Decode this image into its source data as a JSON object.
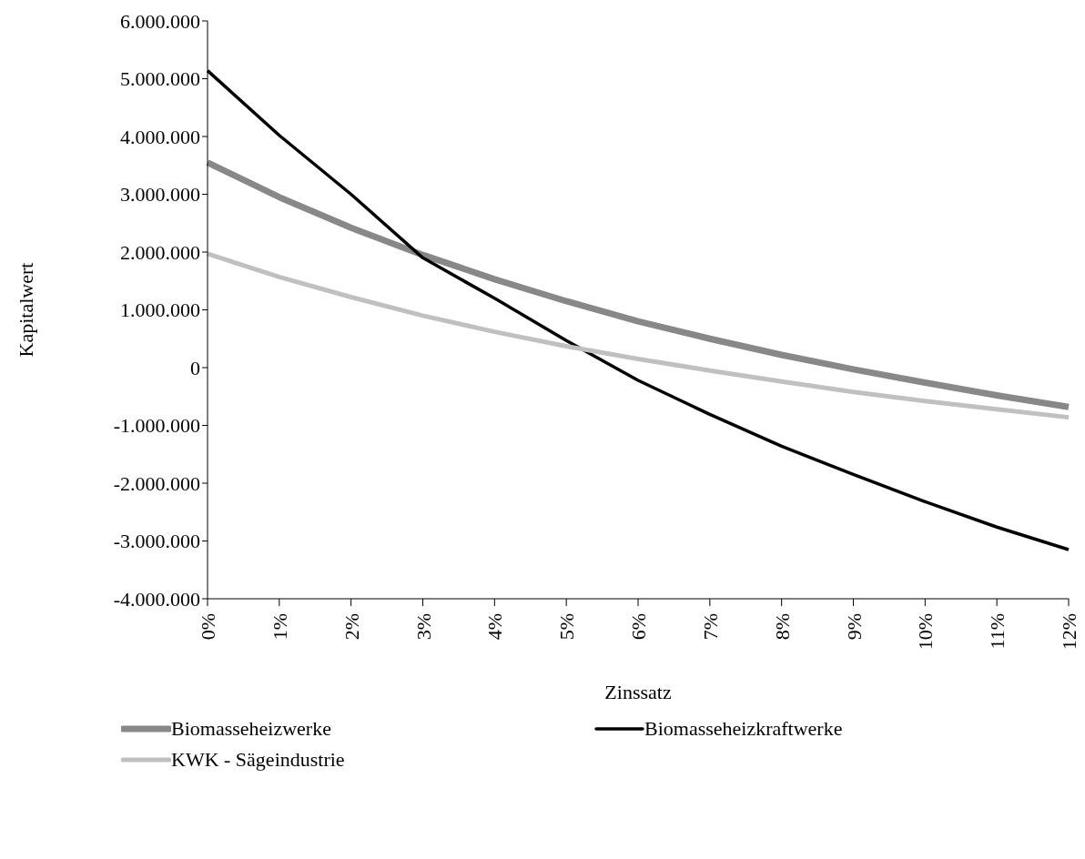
{
  "chart_data": {
    "type": "line",
    "xlabel": "Zinssatz",
    "ylabel": "Kapitalwert",
    "categories": [
      "0%",
      "1%",
      "2%",
      "3%",
      "4%",
      "5%",
      "6%",
      "7%",
      "8%",
      "9%",
      "10%",
      "11%",
      "12%"
    ],
    "series": [
      {
        "name": "Biomasseheizwerke",
        "color": "#888888",
        "values": [
          3550000,
          2950000,
          2420000,
          1950000,
          1530000,
          1150000,
          800000,
          500000,
          220000,
          -30000,
          -260000,
          -480000,
          -680000
        ]
      },
      {
        "name": "Biomasseheizkraftwerke",
        "color": "#000000",
        "values": [
          5140000,
          4020000,
          3000000,
          1900000,
          1200000,
          470000,
          -220000,
          -810000,
          -1360000,
          -1850000,
          -2320000,
          -2760000,
          -3150000
        ]
      },
      {
        "name": "KWK - Sägeindustrie",
        "color": "#c0c0c0",
        "values": [
          1970000,
          1570000,
          1220000,
          900000,
          620000,
          370000,
          150000,
          -50000,
          -240000,
          -420000,
          -580000,
          -720000,
          -860000
        ]
      }
    ],
    "ylim": [
      -4000000,
      6000000
    ],
    "yticks": [
      {
        "value": -4000000,
        "label": "-4.000.000"
      },
      {
        "value": -3000000,
        "label": "-3.000.000"
      },
      {
        "value": -2000000,
        "label": "-2.000.000"
      },
      {
        "value": -1000000,
        "label": "-1.000.000"
      },
      {
        "value": 0,
        "label": "0"
      },
      {
        "value": 1000000,
        "label": "1.000.000"
      },
      {
        "value": 2000000,
        "label": "2.000.000"
      },
      {
        "value": 3000000,
        "label": "3.000.000"
      },
      {
        "value": 4000000,
        "label": "4.000.000"
      },
      {
        "value": 5000000,
        "label": "5.000.000"
      },
      {
        "value": 6000000,
        "label": "6.000.000"
      }
    ],
    "grid": false,
    "legend": "bottom",
    "marker": "none",
    "line_style": "solid"
  }
}
